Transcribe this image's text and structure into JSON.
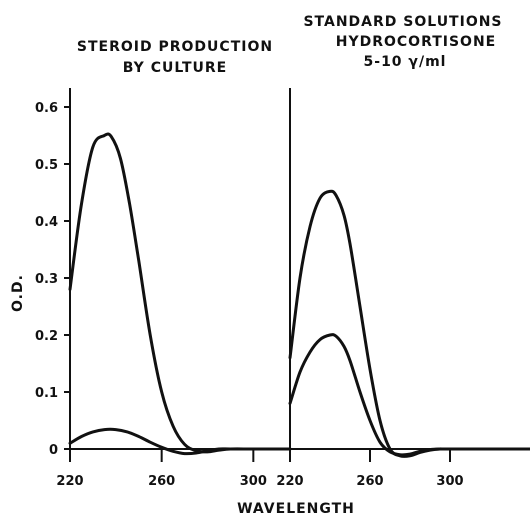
{
  "chart_data": {
    "type": "line",
    "ylabel": "O.D.",
    "xlabel": "WAVELENGTH",
    "ylim": [
      -0.03,
      0.65
    ],
    "yticks": [
      {
        "v": 0.6,
        "label": "0.6"
      },
      {
        "v": 0.5,
        "label": "0.5"
      },
      {
        "v": 0.4,
        "label": "0.4"
      },
      {
        "v": 0.3,
        "label": "0.3"
      },
      {
        "v": 0.2,
        "label": "0.2"
      },
      {
        "v": 0.1,
        "label": "0.1"
      },
      {
        "v": 0.0,
        "label": "0"
      }
    ],
    "panels": [
      {
        "title_lines": [
          "STEROID PRODUCTION",
          "BY CULTURE"
        ],
        "xlim": [
          220,
          316
        ],
        "xticks": [
          {
            "v": 220,
            "label": "220"
          },
          {
            "v": 260,
            "label": "260"
          },
          {
            "v": 300,
            "label": "300"
          }
        ],
        "series": [
          {
            "x": [
              220,
              225,
              230,
              235,
              238,
              242,
              246,
              250,
              255,
              260,
              265,
              270,
              275,
              280,
              285,
              290,
              300,
              316
            ],
            "y": [
              0.28,
              0.43,
              0.53,
              0.55,
              0.548,
              0.51,
              0.43,
              0.33,
              0.2,
              0.1,
              0.04,
              0.008,
              -0.003,
              -0.005,
              -0.002,
              0.0,
              0.0,
              0.0
            ]
          },
          {
            "x": [
              220,
              225,
              230,
              235,
              240,
              245,
              250,
              255,
              260,
              265,
              270,
              275,
              280,
              285,
              290,
              300,
              316
            ],
            "y": [
              0.01,
              0.022,
              0.03,
              0.034,
              0.034,
              0.03,
              0.022,
              0.012,
              0.003,
              -0.004,
              -0.008,
              -0.007,
              -0.003,
              0.0,
              0.0,
              0.0,
              0.0
            ]
          }
        ]
      },
      {
        "title_lines": [
          "STANDARD SOLUTIONS",
          "HYDROCORTISONE",
          "5-10 γ/ml"
        ],
        "xlim": [
          220,
          340
        ],
        "xticks": [
          {
            "v": 220,
            "label": "220"
          },
          {
            "v": 260,
            "label": "260"
          },
          {
            "v": 300,
            "label": "300"
          }
        ],
        "series": [
          {
            "x": [
              220,
              225,
              230,
              235,
              240,
              243,
              247,
              250,
              255,
              260,
              265,
              270,
              275,
              280,
              285,
              290,
              295,
              300,
              340
            ],
            "y": [
              0.16,
              0.3,
              0.39,
              0.44,
              0.452,
              0.445,
              0.41,
              0.36,
              0.25,
              0.14,
              0.05,
              0.0,
              -0.012,
              -0.012,
              -0.006,
              -0.002,
              0.0,
              0.0,
              0.0
            ]
          },
          {
            "x": [
              220,
              225,
              230,
              235,
              240,
              243,
              247,
              250,
              255,
              260,
              265,
              270,
              275,
              280,
              285,
              290,
              295,
              300,
              340
            ],
            "y": [
              0.08,
              0.135,
              0.17,
              0.192,
              0.2,
              0.198,
              0.18,
              0.155,
              0.1,
              0.05,
              0.012,
              -0.005,
              -0.01,
              -0.009,
              -0.004,
              -0.001,
              0.0,
              0.0,
              0.0
            ]
          }
        ]
      }
    ]
  }
}
